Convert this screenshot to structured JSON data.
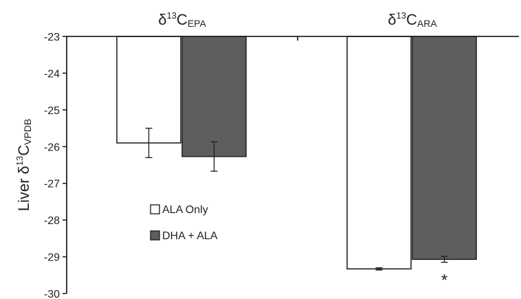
{
  "chart_data": {
    "type": "bar",
    "categories": [
      {
        "delta": "δ",
        "mass": "13",
        "element": "C",
        "sub": "EPA"
      },
      {
        "delta": "δ",
        "mass": "13",
        "element": "C",
        "sub": "ARA"
      }
    ],
    "series": [
      {
        "name": "ALA Only",
        "color": "#ffffff",
        "values": [
          -25.9,
          -29.33
        ],
        "errors": [
          0.4,
          0.03
        ]
      },
      {
        "name": "DHA + ALA",
        "color": "#5e5e5e",
        "values": [
          -26.27,
          -29.07
        ],
        "errors": [
          0.4,
          0.08
        ]
      }
    ],
    "ylabel": {
      "prefix": "Liver  ",
      "delta": "δ",
      "mass": "13",
      "element": "C",
      "sub": "VPDB"
    },
    "ylim": [
      -30,
      -23
    ],
    "yticks": [
      -23,
      -24,
      -25,
      -26,
      -27,
      -28,
      -29,
      -30
    ],
    "grid": false,
    "legend_position": "middle-left",
    "annotations": [
      {
        "category": 1,
        "series": 1,
        "text": "*"
      }
    ]
  }
}
